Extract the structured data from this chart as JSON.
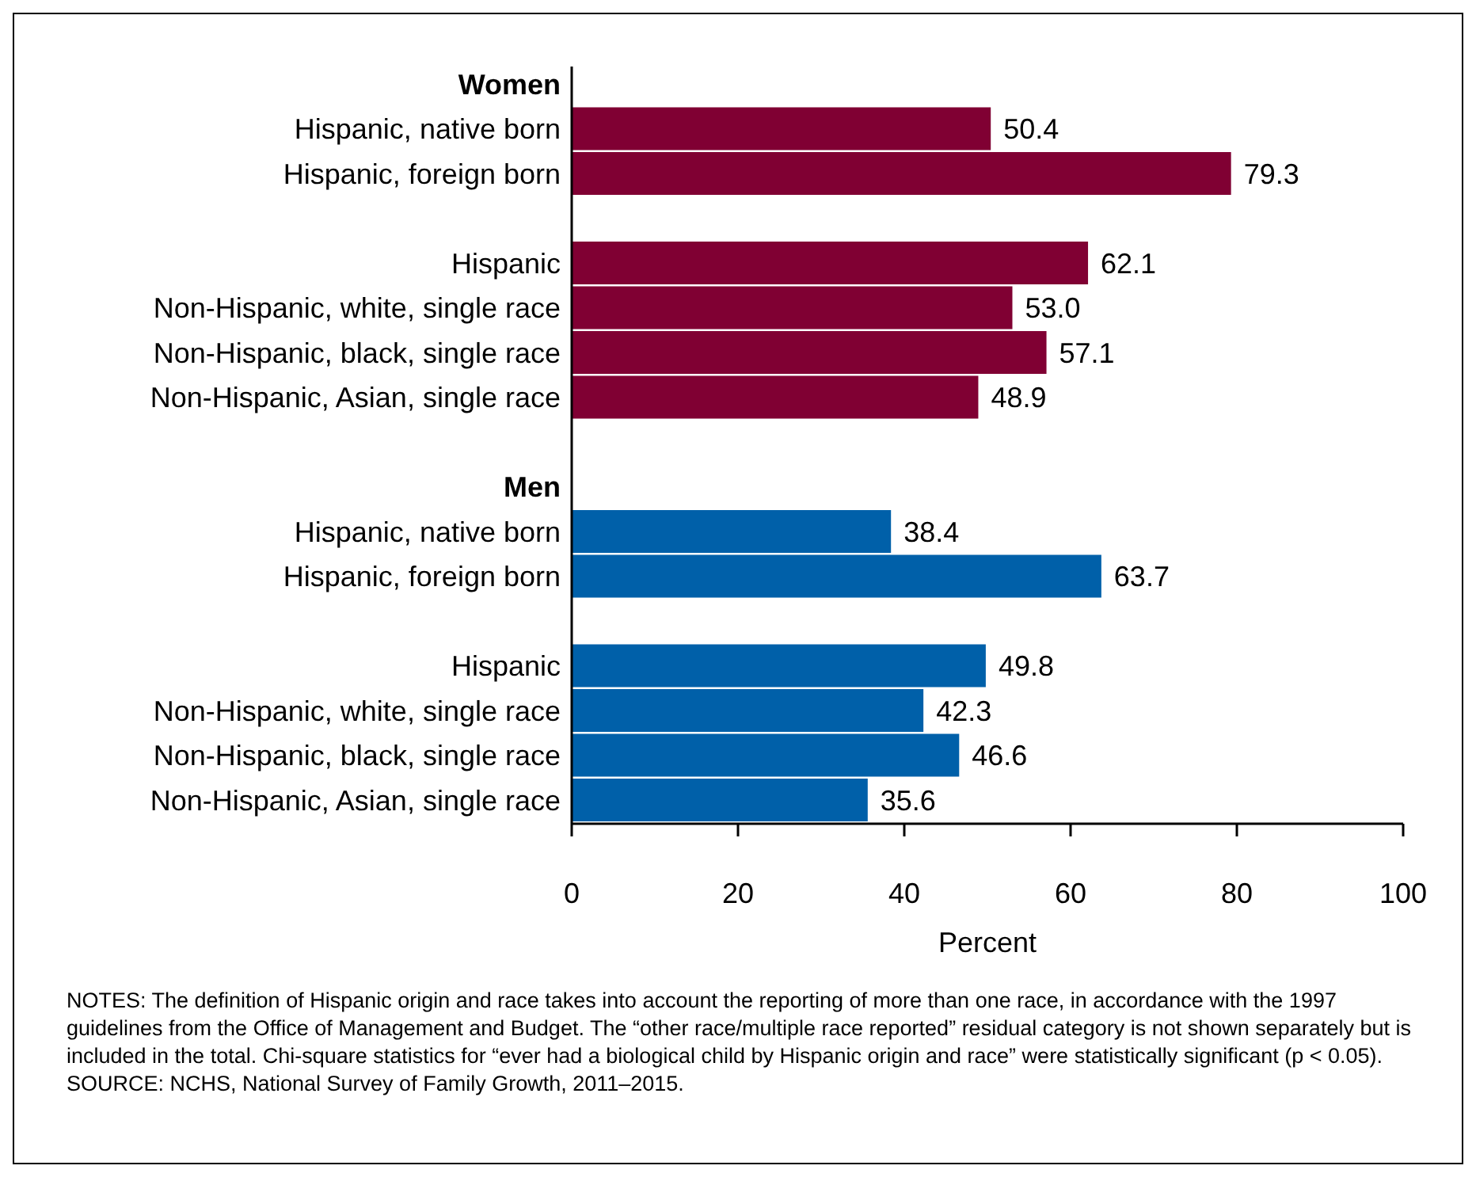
{
  "chart_data": {
    "type": "bar",
    "orientation": "horizontal",
    "categories": [
      "Women",
      "Hispanic, native born",
      "Hispanic, foreign born",
      null,
      "Hispanic",
      "Non-Hispanic, white, single race",
      "Non-Hispanic, black, single race",
      "Non-Hispanic, Asian, single race",
      null,
      "Men",
      "Hispanic, native born",
      "Hispanic, foreign born",
      null,
      "Hispanic",
      "Non-Hispanic, white, single race",
      "Non-Hispanic, black, single race",
      "Non-Hispanic, Asian, single race"
    ],
    "values": [
      null,
      50.4,
      79.3,
      null,
      62.1,
      53.0,
      57.1,
      48.9,
      null,
      null,
      38.4,
      63.7,
      null,
      49.8,
      42.3,
      46.6,
      35.6
    ],
    "colors": [
      null,
      "#800033",
      "#800033",
      null,
      "#800033",
      "#800033",
      "#800033",
      "#800033",
      null,
      null,
      "#0060a9",
      "#0060a9",
      null,
      "#0060a9",
      "#0060a9",
      "#0060a9",
      "#0060a9"
    ],
    "value_labels": [
      null,
      "50.4",
      "79.3",
      null,
      "62.1",
      "53.0",
      "57.1",
      "48.9",
      null,
      null,
      "38.4",
      "63.7",
      null,
      "49.8",
      "42.3",
      "46.6",
      "35.6"
    ],
    "xlim": [
      0,
      100
    ],
    "xticks": [
      0,
      20,
      40,
      60,
      80,
      100
    ],
    "xlabel": "Percent",
    "grid": false,
    "annotations": [
      "NOTES: The definition of Hispanic origin and race takes into account the reporting of more than one race, in accordance with the 1997 guidelines from the Office of Management and Budget. The “other race/multiple race reported” residual category is not shown separately but is included in the total. Chi-square statistics for “ever had a biological child by Hispanic origin and race” were statistically significant (p < 0.05).",
      "SOURCE: NCHS, National Survey of Family Growth, 2011–2015."
    ]
  }
}
